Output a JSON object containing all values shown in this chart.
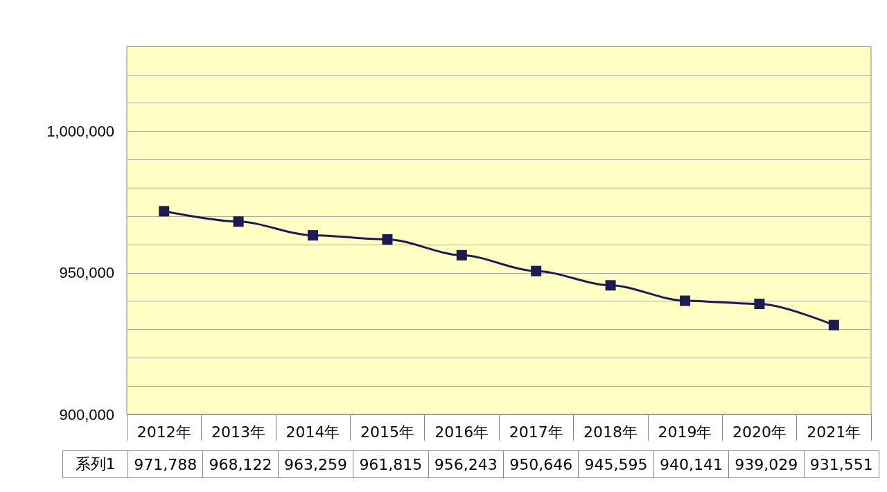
{
  "chart_data": {
    "type": "line",
    "categories": [
      "2012年",
      "2013年",
      "2014年",
      "2015年",
      "2016年",
      "2017年",
      "2018年",
      "2019年",
      "2020年",
      "2021年"
    ],
    "series": [
      {
        "name": "系列1",
        "color": "#1c1c50",
        "values": [
          971788,
          968122,
          963259,
          961815,
          956243,
          950646,
          945595,
          940141,
          939029,
          931551
        ],
        "value_labels": [
          "971,788",
          "968,122",
          "963,259",
          "961,815",
          "956,243",
          "950,646",
          "945,595",
          "940,141",
          "939,029",
          "931,551"
        ]
      }
    ],
    "ylim": [
      900000,
      1030000
    ],
    "yticks": [
      {
        "value": 900000,
        "label": "900,000"
      },
      {
        "value": 910000,
        "label": null
      },
      {
        "value": 920000,
        "label": null
      },
      {
        "value": 930000,
        "label": null
      },
      {
        "value": 940000,
        "label": null
      },
      {
        "value": 950000,
        "label": "950,000"
      },
      {
        "value": 960000,
        "label": null
      },
      {
        "value": 970000,
        "label": null
      },
      {
        "value": 980000,
        "label": null
      },
      {
        "value": 990000,
        "label": null
      },
      {
        "value": 1000000,
        "label": "1,000,000"
      },
      {
        "value": 1010000,
        "label": null
      },
      {
        "value": 1020000,
        "label": null
      },
      {
        "value": 1030000,
        "label": null
      }
    ],
    "grid": "y",
    "legend": false,
    "marker": "square",
    "line_style": "solid"
  }
}
